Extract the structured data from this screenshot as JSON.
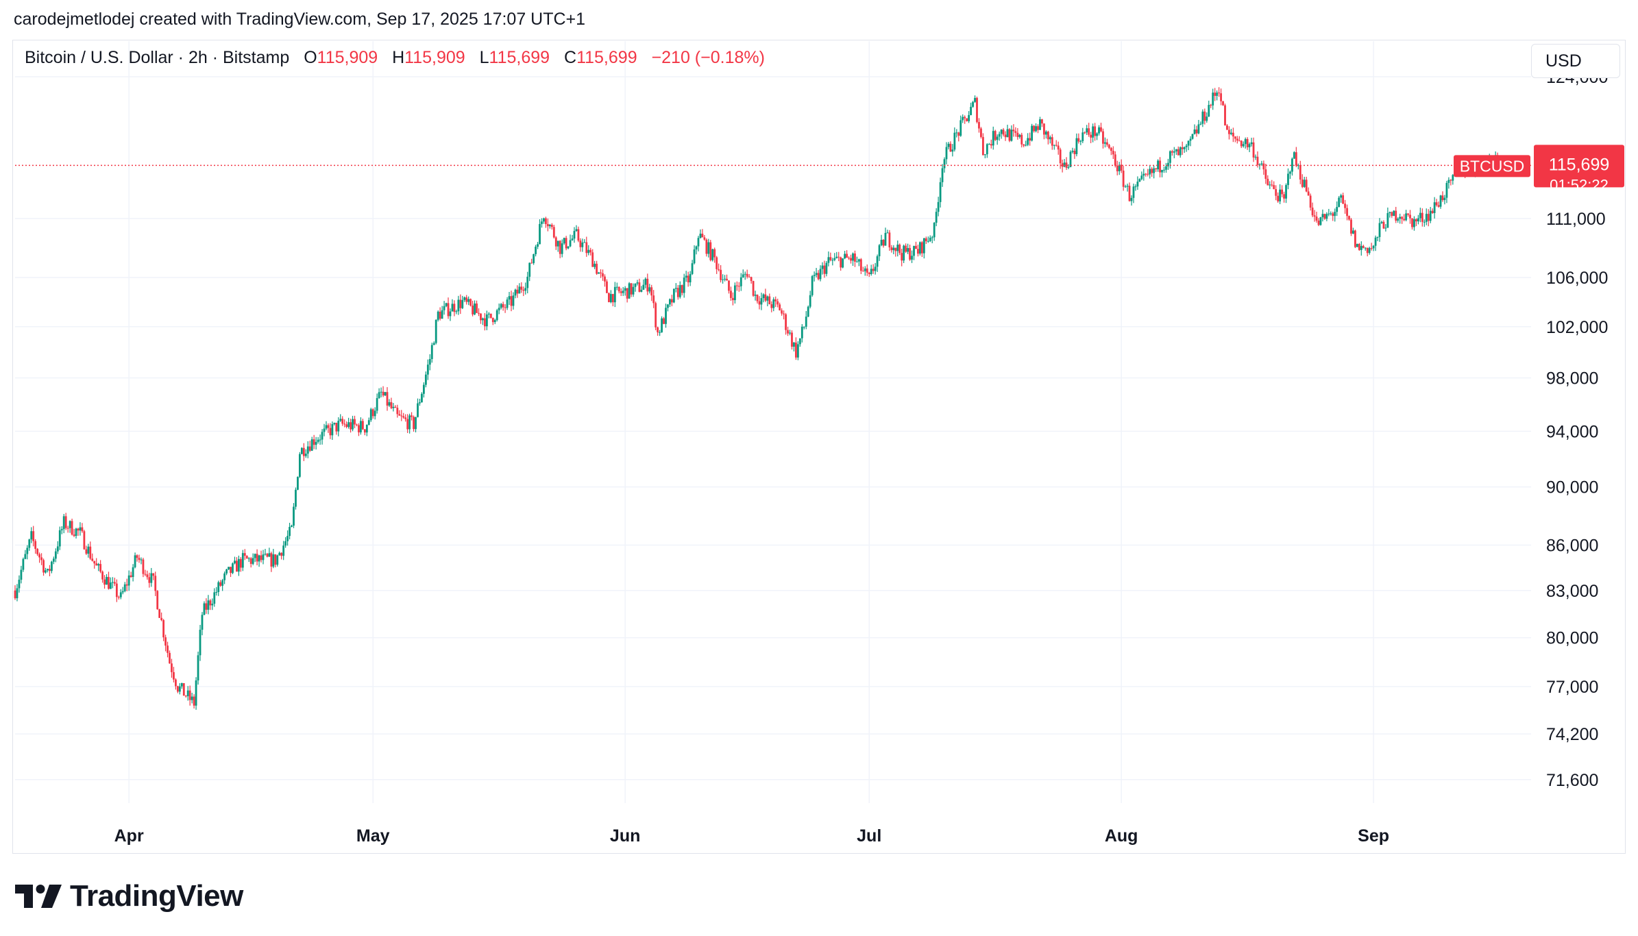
{
  "header": {
    "caption": "carodejmetlodej created with TradingView.com, Sep 17, 2025 17:07 UTC+1"
  },
  "legend": {
    "symbol": "Bitcoin / U.S. Dollar · 2h · Bitstamp",
    "open_label": "O",
    "open": "115,909",
    "high_label": "H",
    "high": "115,909",
    "low_label": "L",
    "low": "115,699",
    "close_label": "C",
    "close": "115,699",
    "change": "−210 (−0.18%)"
  },
  "currency": "USD",
  "footer": {
    "brand": "TradingView"
  },
  "colors": {
    "up": "#089981",
    "down": "#f23645",
    "grid": "#f0f3fa",
    "text": "#131722"
  },
  "chart_data": {
    "type": "candlestick",
    "symbol_tag": "BTCUSD",
    "last_price": 115699,
    "last_price_label": "115,699",
    "countdown": "01:52:22",
    "y_scale": "log",
    "ylim": [
      70300,
      127500
    ],
    "y_ticks": [
      {
        "value": 124000,
        "label": "124,000"
      },
      {
        "value": 111000,
        "label": "111,000"
      },
      {
        "value": 106000,
        "label": "106,000"
      },
      {
        "value": 102000,
        "label": "102,000"
      },
      {
        "value": 98000,
        "label": "98,000"
      },
      {
        "value": 94000,
        "label": "94,000"
      },
      {
        "value": 90000,
        "label": "90,000"
      },
      {
        "value": 86000,
        "label": "86,000"
      },
      {
        "value": 83000,
        "label": "83,000"
      },
      {
        "value": 80000,
        "label": "80,000"
      },
      {
        "value": 77000,
        "label": "77,000"
      },
      {
        "value": 74200,
        "label": "74,200"
      },
      {
        "value": 71600,
        "label": "71,600"
      }
    ],
    "xlim": [
      "2025-03-18",
      "2025-09-17"
    ],
    "x_ticks": [
      {
        "date": "2025-04-01",
        "label": "Apr"
      },
      {
        "date": "2025-05-01",
        "label": "May"
      },
      {
        "date": "2025-06-01",
        "label": "Jun"
      },
      {
        "date": "2025-07-01",
        "label": "Jul"
      },
      {
        "date": "2025-08-01",
        "label": "Aug"
      },
      {
        "date": "2025-09-01",
        "label": "Sep"
      }
    ],
    "path": [
      [
        "2025-03-18",
        83000
      ],
      [
        "2025-03-20",
        86500
      ],
      [
        "2025-03-22",
        84000
      ],
      [
        "2025-03-24",
        87500
      ],
      [
        "2025-03-26",
        86800
      ],
      [
        "2025-03-28",
        84500
      ],
      [
        "2025-03-31",
        82500
      ],
      [
        "2025-04-02",
        85200
      ],
      [
        "2025-04-04",
        83500
      ],
      [
        "2025-04-06",
        78500
      ],
      [
        "2025-04-07",
        77000
      ],
      [
        "2025-04-09",
        76000
      ],
      [
        "2025-04-10",
        81500
      ],
      [
        "2025-04-13",
        84000
      ],
      [
        "2025-04-15",
        85000
      ],
      [
        "2025-04-19",
        85000
      ],
      [
        "2025-04-21",
        87000
      ],
      [
        "2025-04-22",
        92500
      ],
      [
        "2025-04-24",
        93500
      ],
      [
        "2025-04-27",
        94500
      ],
      [
        "2025-04-30",
        94300
      ],
      [
        "2025-05-02",
        96800
      ],
      [
        "2025-05-04",
        95000
      ],
      [
        "2025-05-06",
        94500
      ],
      [
        "2025-05-08",
        99500
      ],
      [
        "2025-05-09",
        103000
      ],
      [
        "2025-05-12",
        104000
      ],
      [
        "2025-05-15",
        102500
      ],
      [
        "2025-05-18",
        104000
      ],
      [
        "2025-05-20",
        106000
      ],
      [
        "2025-05-22",
        111500
      ],
      [
        "2025-05-24",
        108500
      ],
      [
        "2025-05-26",
        109500
      ],
      [
        "2025-05-28",
        107500
      ],
      [
        "2025-05-30",
        104500
      ],
      [
        "2025-06-02",
        105000
      ],
      [
        "2025-06-04",
        105500
      ],
      [
        "2025-06-05",
        101500
      ],
      [
        "2025-06-07",
        104500
      ],
      [
        "2025-06-09",
        106000
      ],
      [
        "2025-06-10",
        109700
      ],
      [
        "2025-06-12",
        107500
      ],
      [
        "2025-06-14",
        104500
      ],
      [
        "2025-06-16",
        106500
      ],
      [
        "2025-06-17",
        104500
      ],
      [
        "2025-06-20",
        103500
      ],
      [
        "2025-06-22",
        100000
      ],
      [
        "2025-06-23",
        102000
      ],
      [
        "2025-06-24",
        105500
      ],
      [
        "2025-06-26",
        107300
      ],
      [
        "2025-06-29",
        107600
      ],
      [
        "2025-07-01",
        105800
      ],
      [
        "2025-07-03",
        109500
      ],
      [
        "2025-07-05",
        108000
      ],
      [
        "2025-07-07",
        108200
      ],
      [
        "2025-07-09",
        110000
      ],
      [
        "2025-07-10",
        116000
      ],
      [
        "2025-07-11",
        117500
      ],
      [
        "2025-07-14",
        121500
      ],
      [
        "2025-07-15",
        117000
      ],
      [
        "2025-07-17",
        119000
      ],
      [
        "2025-07-20",
        117800
      ],
      [
        "2025-07-22",
        119500
      ],
      [
        "2025-07-25",
        115500
      ],
      [
        "2025-07-27",
        118500
      ],
      [
        "2025-07-29",
        118800
      ],
      [
        "2025-07-31",
        116500
      ],
      [
        "2025-08-02",
        113000
      ],
      [
        "2025-08-04",
        114500
      ],
      [
        "2025-08-07",
        116500
      ],
      [
        "2025-08-09",
        117000
      ],
      [
        "2025-08-11",
        120000
      ],
      [
        "2025-08-13",
        123000
      ],
      [
        "2025-08-14",
        118500
      ],
      [
        "2025-08-17",
        117500
      ],
      [
        "2025-08-19",
        114000
      ],
      [
        "2025-08-21",
        112500
      ],
      [
        "2025-08-22",
        116800
      ],
      [
        "2025-08-24",
        113000
      ],
      [
        "2025-08-25",
        110500
      ],
      [
        "2025-08-27",
        111500
      ],
      [
        "2025-08-28",
        112500
      ],
      [
        "2025-08-30",
        108500
      ],
      [
        "2025-09-01",
        108500
      ],
      [
        "2025-09-02",
        110500
      ],
      [
        "2025-09-04",
        111500
      ],
      [
        "2025-09-06",
        110700
      ],
      [
        "2025-09-08",
        111500
      ],
      [
        "2025-09-10",
        113500
      ],
      [
        "2025-09-12",
        115500
      ],
      [
        "2025-09-14",
        115500
      ],
      [
        "2025-09-16",
        116500
      ],
      [
        "2025-09-17",
        115699
      ]
    ]
  }
}
